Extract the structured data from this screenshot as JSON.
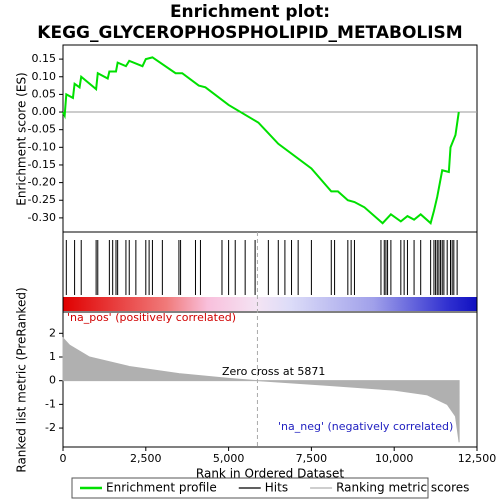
{
  "chart_data": [
    {
      "type": "line",
      "title": [
        "Enrichment plot:",
        "KEGG_GLYCEROPHOSPHOLIPID_METABOLISM"
      ],
      "y_label": "Enrichment score (ES)",
      "x": [
        0,
        50,
        100,
        300,
        350,
        500,
        550,
        1000,
        1050,
        1350,
        1400,
        1600,
        1650,
        1900,
        2000,
        2400,
        2500,
        2700,
        3400,
        3600,
        4100,
        4300,
        5000,
        5900,
        6500,
        7500,
        8100,
        8300,
        8600,
        8800,
        9100,
        9650,
        9900,
        10200,
        10400,
        10600,
        10800,
        11100,
        11200,
        11300,
        11450,
        11650,
        11700,
        11850,
        11950
      ],
      "series": [
        {
          "name": "Enrichment profile",
          "color": "#00e000",
          "values": [
            0,
            -0.01,
            0.05,
            0.04,
            0.08,
            0.07,
            0.1,
            0.065,
            0.11,
            0.095,
            0.115,
            0.115,
            0.14,
            0.13,
            0.145,
            0.13,
            0.15,
            0.155,
            0.11,
            0.11,
            0.075,
            0.07,
            0.02,
            -0.03,
            -0.09,
            -0.16,
            -0.225,
            -0.225,
            -0.25,
            -0.255,
            -0.27,
            -0.315,
            -0.29,
            -0.31,
            -0.295,
            -0.305,
            -0.29,
            -0.315,
            -0.28,
            -0.24,
            -0.165,
            -0.17,
            -0.1,
            -0.065,
            0
          ]
        }
      ],
      "xlim": [
        0,
        12500
      ],
      "ylim": [
        -0.34,
        0.19
      ],
      "yticks": [
        0.15,
        {
          "value": 0.1,
          "label": "0.10"
        },
        0.05,
        {
          "value": 0,
          "label": "0.00"
        },
        -0.05,
        {
          "value": -0.1,
          "label": "-0.10"
        },
        -0.15,
        {
          "value": -0.2,
          "label": "-0.20"
        },
        -0.25,
        {
          "value": -0.3,
          "label": "-0.30"
        }
      ]
    },
    {
      "type": "rug",
      "series": [
        {
          "name": "Hits",
          "color": "#000000",
          "x": [
            100,
            350,
            550,
            1000,
            1050,
            1400,
            1500,
            1600,
            1650,
            1900,
            2000,
            2200,
            2500,
            2600,
            2700,
            3000,
            3500,
            3550,
            4000,
            4150,
            4800,
            5000,
            5200,
            5500,
            5800,
            6200,
            6500,
            6700,
            6900,
            7100,
            7500,
            8100,
            8200,
            8600,
            8700,
            8800,
            9600,
            9700,
            9750,
            9800,
            9900,
            10200,
            10300,
            10400,
            10600,
            10800,
            11100,
            11200,
            11250,
            11300,
            11350,
            11400,
            11450,
            11500,
            11600,
            11700,
            11750,
            11800,
            11900
          ]
        }
      ],
      "xlim": [
        0,
        12500
      ]
    },
    {
      "type": "area",
      "y_label": "Ranked list metric (PreRanked)",
      "x_label": "Rank in Ordered Dataset",
      "x": [
        0,
        200,
        800,
        2000,
        3500,
        5000,
        5871,
        8000,
        10000,
        11000,
        11600,
        11850,
        11960
      ],
      "series": [
        {
          "name": "Ranking metric scores",
          "color": "#b0b0b0",
          "values": [
            1.8,
            1.5,
            1.0,
            0.6,
            0.3,
            0.1,
            0,
            -0.2,
            -0.4,
            -0.6,
            -1.0,
            -1.5,
            -2.6
          ]
        }
      ],
      "xlim": [
        0,
        12500
      ],
      "ylim": [
        -2.8,
        2.9
      ],
      "yticks": [
        2,
        1,
        0,
        -1,
        -2
      ],
      "xticks": [
        0,
        {
          "value": 2500,
          "label": "2,500"
        },
        {
          "value": 5000,
          "label": "5,000"
        },
        {
          "value": 7500,
          "label": "7,500"
        },
        {
          "value": 10000,
          "label": "10,000"
        },
        {
          "value": 12500,
          "label": "12,500"
        }
      ],
      "zero_cross": 5871,
      "annotations": [
        "'na_pos' (positively correlated)",
        "Zero cross at 5871",
        "'na_neg' (negatively correlated)"
      ]
    }
  ]
}
